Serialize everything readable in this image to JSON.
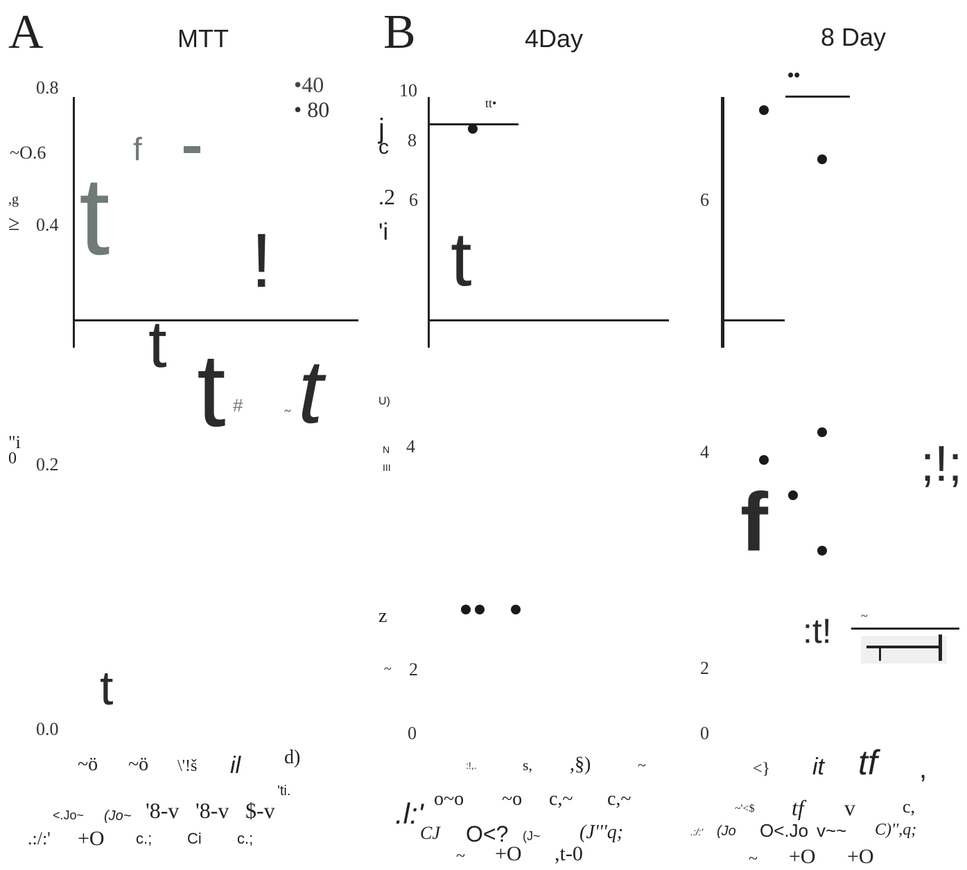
{
  "panel_labels": {
    "a": "A",
    "b": "B"
  },
  "chart_data": [
    {
      "panel": "A",
      "type": "bar",
      "title": "MTT",
      "yticks": [
        "0.8",
        "0.0"
      ],
      "yticks_extra": [
        "~O.6",
        "0.4",
        "0.2"
      ],
      "ylabel_fragments": [
        ",g",
        "≥",
        "\"i",
        "0"
      ],
      "legend": {
        "a": "•40",
        "b": "•  80"
      },
      "glyphs": [
        "t",
        "f",
        "!",
        "t",
        "t",
        "#",
        "~",
        "t",
        "t"
      ],
      "xlabel_row1": [
        "~ö",
        "~ö",
        "\\'!š",
        "il",
        "d)"
      ],
      "xlabel_note": "'ti.",
      "xlabel_row2": [
        "<.Jo~",
        "(Jo~",
        "'8-v",
        "'8-v",
        "$-v"
      ],
      "xlabel_row3": [
        ".:/:'",
        "+O",
        "c.;",
        "Ci",
        "c.;"
      ],
      "colors": {
        "bar_gray": "#707a78",
        "bar_dark": "#2b2b2b"
      }
    },
    {
      "panel": "B1",
      "type": "scatter",
      "title": "4Day",
      "yticks": [
        "10",
        "8",
        "6",
        "4",
        "2",
        "0"
      ],
      "ylabel_fragments": [
        "j",
        "c",
        ".2",
        "'i",
        "U)",
        "N",
        "III",
        "z",
        "~"
      ],
      "annotation": "tt•",
      "glyphs": [
        "t"
      ],
      "points": [
        {
          "x": 1,
          "y": 8.4
        },
        {
          "x": 0.8,
          "y": 2.6
        },
        {
          "x": 1.2,
          "y": 2.6
        },
        {
          "x": 2.2,
          "y": 2.6
        }
      ],
      "xlabel_row1": [
        ":!,.",
        "s,",
        ",§)",
        "~"
      ],
      "xlabel_row2": [
        ".l:'",
        "o~o",
        "~o",
        "c,~",
        "c,~"
      ],
      "xlabel_row3": [
        "CJ",
        "O<?",
        "(J~",
        "(J'''q;"
      ],
      "xlabel_row4": [
        "~",
        "+O",
        ",t-0"
      ]
    },
    {
      "panel": "B2",
      "type": "scatter",
      "title": "8 Day",
      "yticks": [
        "6",
        "4",
        "2",
        "0"
      ],
      "annotation": "••",
      "glyphs": [
        "f",
        ";!;",
        ":t!",
        "~"
      ],
      "points": [
        {
          "x": 1,
          "y": 9.3
        },
        {
          "x": 3,
          "y": 7.5
        },
        {
          "x": 1,
          "y": 3.9
        },
        {
          "x": 2,
          "y": 3.4
        },
        {
          "x": 3,
          "y": 4.3
        },
        {
          "x": 3,
          "y": 2.6
        }
      ],
      "xlabel_row1": [
        "<}",
        "it",
        "tf",
        ","
      ],
      "xlabel_row2": [
        "~'<$",
        "tf",
        "v",
        "c,"
      ],
      "xlabel_row3": [
        ".:/:'",
        "(Jo",
        "O<.Jo",
        "v~~",
        "C)'',q;"
      ],
      "xlabel_row4": [
        "~",
        "+O",
        "+O"
      ]
    }
  ]
}
